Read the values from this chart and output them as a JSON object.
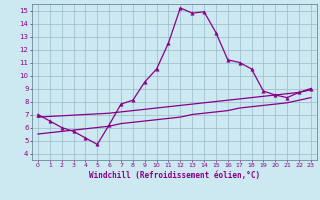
{
  "xlabel": "Windchill (Refroidissement éolien,°C)",
  "background_color": "#cce8f0",
  "grid_color": "#99bbcc",
  "line_color": "#880088",
  "xlim": [
    -0.5,
    23.5
  ],
  "ylim": [
    3.5,
    15.5
  ],
  "xticks": [
    0,
    1,
    2,
    3,
    4,
    5,
    6,
    7,
    8,
    9,
    10,
    11,
    12,
    13,
    14,
    15,
    16,
    17,
    18,
    19,
    20,
    21,
    22,
    23
  ],
  "yticks": [
    4,
    5,
    6,
    7,
    8,
    9,
    10,
    11,
    12,
    13,
    14,
    15
  ],
  "main_x": [
    0,
    1,
    2,
    3,
    4,
    5,
    6,
    7,
    8,
    9,
    10,
    11,
    12,
    13,
    14,
    15,
    16,
    17,
    18,
    19,
    20,
    21,
    22,
    23
  ],
  "main_y": [
    7.0,
    6.5,
    6.0,
    5.7,
    5.2,
    4.7,
    6.2,
    7.8,
    8.1,
    9.5,
    10.5,
    12.5,
    15.2,
    14.8,
    14.9,
    13.3,
    11.2,
    11.0,
    10.5,
    8.8,
    8.5,
    8.3,
    8.7,
    9.0
  ],
  "diag1_x": [
    0,
    1,
    2,
    3,
    4,
    5,
    6,
    7,
    8,
    9,
    10,
    11,
    12,
    13,
    14,
    15,
    16,
    17,
    18,
    19,
    20,
    21,
    22,
    23
  ],
  "diag1_y": [
    5.5,
    5.6,
    5.7,
    5.8,
    5.9,
    6.0,
    6.1,
    6.3,
    6.4,
    6.5,
    6.6,
    6.7,
    6.8,
    7.0,
    7.1,
    7.2,
    7.3,
    7.5,
    7.6,
    7.7,
    7.8,
    7.9,
    8.1,
    8.3
  ],
  "diag2_x": [
    0,
    1,
    2,
    3,
    4,
    5,
    6,
    7,
    8,
    9,
    10,
    11,
    12,
    13,
    14,
    15,
    16,
    17,
    18,
    19,
    20,
    21,
    22,
    23
  ],
  "diag2_y": [
    6.8,
    6.85,
    6.9,
    6.95,
    7.0,
    7.05,
    7.1,
    7.2,
    7.3,
    7.4,
    7.5,
    7.6,
    7.7,
    7.8,
    7.9,
    8.0,
    8.1,
    8.2,
    8.3,
    8.4,
    8.5,
    8.6,
    8.7,
    8.9
  ]
}
